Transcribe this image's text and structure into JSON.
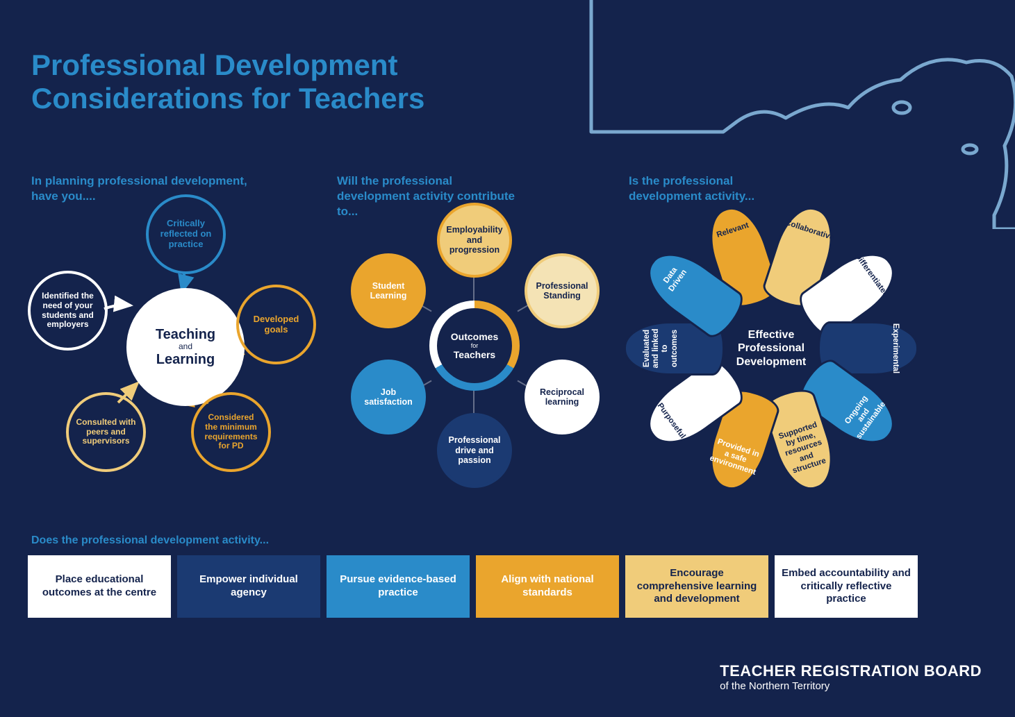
{
  "title_line1": "Professional Development",
  "title_line2": "Considerations for Teachers",
  "colors": {
    "bg": "#14234c",
    "blue_light": "#2a8bc9",
    "blue_mid": "#1b3a72",
    "blue_navy": "#14234c",
    "orange": "#eaa52d",
    "orange_light": "#f0cc7a",
    "cream": "#f4e3b5",
    "white": "#ffffff"
  },
  "section1": {
    "prompt": "In planning professional development,\nhave you....",
    "center_top": "Teaching",
    "center_mid": "and",
    "center_bottom": "Learning",
    "satellites": {
      "top": {
        "label": "Critically reflected on practice",
        "color": "#2a8bc9"
      },
      "right": {
        "label": "Developed goals",
        "color": "#eaa52d"
      },
      "br": {
        "label": "Considered the minimum requirements for PD",
        "color": "#eaa52d"
      },
      "bl": {
        "label": "Consulted with peers and supervisors",
        "color": "#f0cc7a"
      },
      "left": {
        "label": "Identified the need of your students and employers",
        "color": "#ffffff"
      }
    }
  },
  "section2": {
    "prompt": "Will the professional development activity contribute to...",
    "center_top": "Outcomes",
    "center_mid": "for",
    "center_bottom": "Teachers",
    "satellites": {
      "top": {
        "label": "Employability and progression",
        "bg": "#f0cc7a",
        "border": "#eaa52d",
        "color": "#14234c"
      },
      "tr": {
        "label": "Professional Standing",
        "bg": "#f4e3b5",
        "border": "#f0cc7a",
        "color": "#14234c"
      },
      "r": {
        "label": "Reciprocal learning",
        "bg": "#ffffff",
        "border": "#ffffff",
        "color": "#14234c"
      },
      "b": {
        "label": "Professional drive and passion",
        "bg": "#1b3a72",
        "border": "#1b3a72",
        "color": "#ffffff"
      },
      "bl": {
        "label": "Job satisfaction",
        "bg": "#2a8bc9",
        "border": "#2a8bc9",
        "color": "#ffffff"
      },
      "tl": {
        "label": "Student Learning",
        "bg": "#eaa52d",
        "border": "#eaa52d",
        "color": "#ffffff"
      }
    }
  },
  "section3": {
    "prompt": "Is the professional development activity...",
    "center": "Effective Professional Development",
    "petals": [
      {
        "label": "Relevant",
        "bg": "#eaa52d",
        "color": "#14234c",
        "rot": -18
      },
      {
        "label": "Collaborative",
        "bg": "#f0cc7a",
        "color": "#14234c",
        "rot": 18
      },
      {
        "label": "Differentiated",
        "bg": "#ffffff",
        "color": "#14234c",
        "rot": 54
      },
      {
        "label": "Experimental",
        "bg": "#1b3a72",
        "color": "#ffffff",
        "rot": 90
      },
      {
        "label": "Ongoing and sustainable",
        "bg": "#2a8bc9",
        "color": "#ffffff",
        "rot": 126
      },
      {
        "label": "Supported by time, resources and structure",
        "bg": "#f0cc7a",
        "color": "#14234c",
        "rot": 162
      },
      {
        "label": "Provided in a safe environment",
        "bg": "#eaa52d",
        "color": "#ffffff",
        "rot": 198
      },
      {
        "label": "Purposeful",
        "bg": "#ffffff",
        "color": "#14234c",
        "rot": 234
      },
      {
        "label": "Evaluated and linked to outcomes",
        "bg": "#1b3a72",
        "color": "#ffffff",
        "rot": 270
      },
      {
        "label": "Data Driven",
        "bg": "#2a8bc9",
        "color": "#ffffff",
        "rot": 306
      }
    ]
  },
  "bottom": {
    "prompt": "Does the professional development activity...",
    "boxes": [
      {
        "label": "Place educational outcomes at the centre",
        "bg": "#ffffff",
        "color": "#14234c"
      },
      {
        "label": "Empower individual agency",
        "bg": "#1b3a72",
        "color": "#ffffff"
      },
      {
        "label": "Pursue evidence-based practice",
        "bg": "#2a8bc9",
        "color": "#ffffff"
      },
      {
        "label": "Align with national standards",
        "bg": "#eaa52d",
        "color": "#ffffff"
      },
      {
        "label": "Encourage comprehensive learning and development",
        "bg": "#f0cc7a",
        "color": "#14234c"
      },
      {
        "label": "Embed accountability and critically reflective practice",
        "bg": "#ffffff",
        "color": "#14234c"
      }
    ]
  },
  "footer": {
    "main": "TEACHER REGISTRATION BOARD",
    "sub": "of the Northern Territory"
  }
}
